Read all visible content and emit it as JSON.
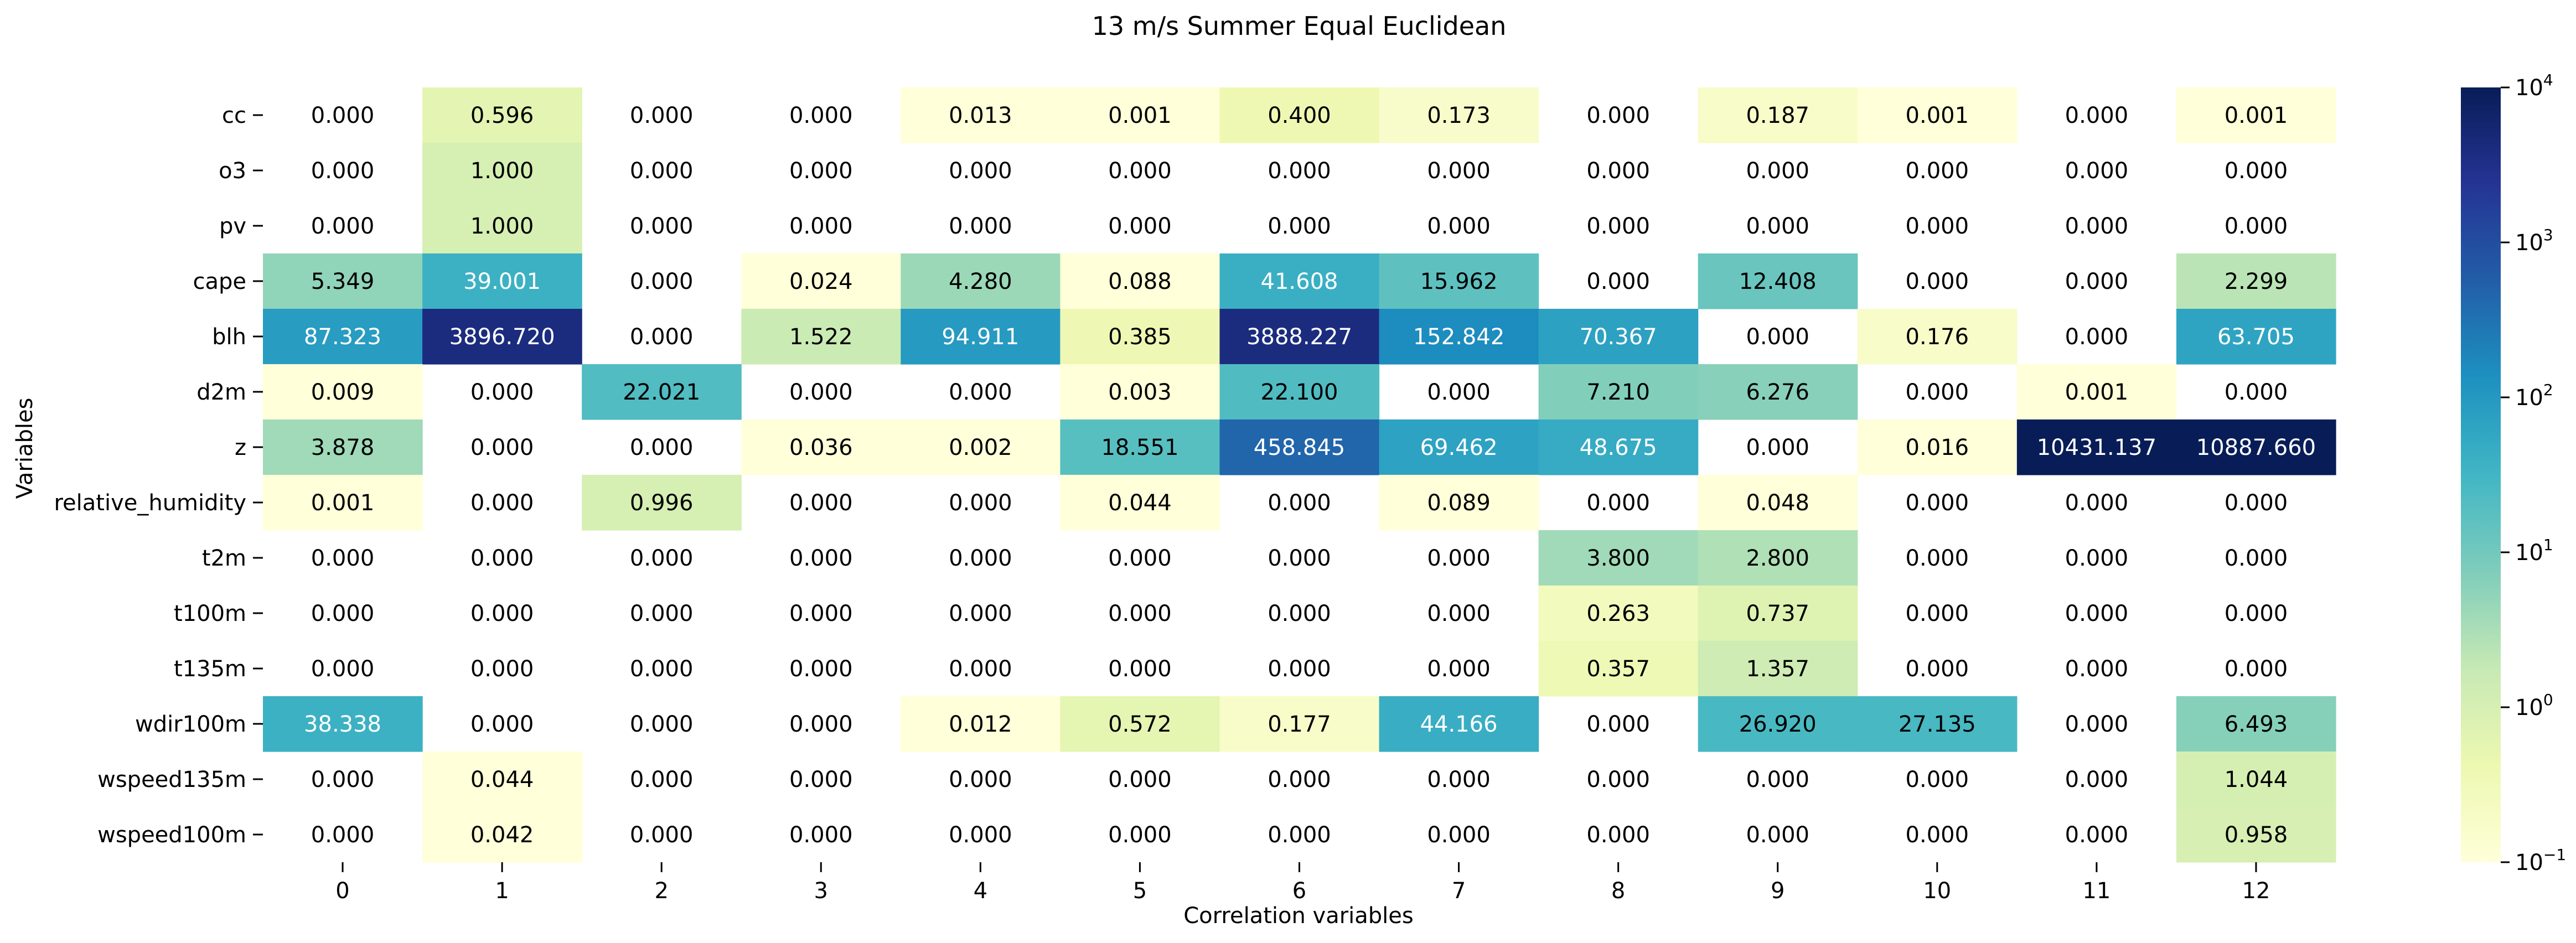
{
  "chart_data": {
    "type": "heatmap",
    "title": "13 m/s Summer Equal Euclidean",
    "xlabel": "Correlation variables",
    "ylabel": "Variables",
    "x_categories": [
      "0",
      "1",
      "2",
      "3",
      "4",
      "5",
      "6",
      "7",
      "8",
      "9",
      "10",
      "11",
      "12"
    ],
    "y_categories": [
      "cc",
      "o3",
      "pv",
      "cape",
      "blh",
      "d2m",
      "z",
      "relative_humidity",
      "t2m",
      "t100m",
      "t135m",
      "wdir100m",
      "wspeed135m",
      "wspeed100m"
    ],
    "values": [
      [
        0.0,
        0.596,
        0.0,
        0.0,
        0.013,
        0.001,
        0.4,
        0.173,
        0.0,
        0.187,
        0.001,
        0.0,
        0.001
      ],
      [
        0.0,
        1.0,
        0.0,
        0.0,
        0.0,
        0.0,
        0.0,
        0.0,
        0.0,
        0.0,
        0.0,
        0.0,
        0.0
      ],
      [
        0.0,
        1.0,
        0.0,
        0.0,
        0.0,
        0.0,
        0.0,
        0.0,
        0.0,
        0.0,
        0.0,
        0.0,
        0.0
      ],
      [
        5.349,
        39.001,
        0.0,
        0.024,
        4.28,
        0.088,
        41.608,
        15.962,
        0.0,
        12.408,
        0.0,
        0.0,
        2.299
      ],
      [
        87.323,
        3896.72,
        0.0,
        1.522,
        94.911,
        0.385,
        3888.227,
        152.842,
        70.367,
        0.0,
        0.176,
        0.0,
        63.705
      ],
      [
        0.009,
        0.0,
        22.021,
        0.0,
        0.0,
        0.003,
        22.1,
        0.0,
        7.21,
        6.276,
        0.0,
        0.001,
        0.0
      ],
      [
        3.878,
        0.0,
        0.0,
        0.036,
        0.002,
        18.551,
        458.845,
        69.462,
        48.675,
        0.0,
        0.016,
        10431.137,
        10887.66
      ],
      [
        0.001,
        0.0,
        0.996,
        0.0,
        0.0,
        0.044,
        0.0,
        0.089,
        0.0,
        0.048,
        0.0,
        0.0,
        0.0
      ],
      [
        0.0,
        0.0,
        0.0,
        0.0,
        0.0,
        0.0,
        0.0,
        0.0,
        3.8,
        2.8,
        0.0,
        0.0,
        0.0
      ],
      [
        0.0,
        0.0,
        0.0,
        0.0,
        0.0,
        0.0,
        0.0,
        0.0,
        0.263,
        0.737,
        0.0,
        0.0,
        0.0
      ],
      [
        0.0,
        0.0,
        0.0,
        0.0,
        0.0,
        0.0,
        0.0,
        0.0,
        0.357,
        1.357,
        0.0,
        0.0,
        0.0
      ],
      [
        38.338,
        0.0,
        0.0,
        0.0,
        0.012,
        0.572,
        0.177,
        44.166,
        0.0,
        26.92,
        27.135,
        0.0,
        6.493
      ],
      [
        0.0,
        0.044,
        0.0,
        0.0,
        0.0,
        0.0,
        0.0,
        0.0,
        0.0,
        0.0,
        0.0,
        0.0,
        1.044
      ],
      [
        0.0,
        0.042,
        0.0,
        0.0,
        0.0,
        0.0,
        0.0,
        0.0,
        0.0,
        0.0,
        0.0,
        0.0,
        0.958
      ]
    ],
    "value_format": "3 decimals",
    "colorbar": {
      "scale": "log",
      "range": [
        0.1,
        10000
      ],
      "colormap": "YlGnBu",
      "ticks": [
        {
          "value": 0.1,
          "base": "10",
          "exp": "−1"
        },
        {
          "value": 1,
          "base": "10",
          "exp": "0"
        },
        {
          "value": 10,
          "base": "10",
          "exp": "1"
        },
        {
          "value": 100,
          "base": "10",
          "exp": "2"
        },
        {
          "value": 1000,
          "base": "10",
          "exp": "3"
        },
        {
          "value": 10000,
          "base": "10",
          "exp": "4"
        }
      ]
    },
    "zero_cells": "blank (masked)",
    "grid": false,
    "legend": "colorbar-right"
  }
}
